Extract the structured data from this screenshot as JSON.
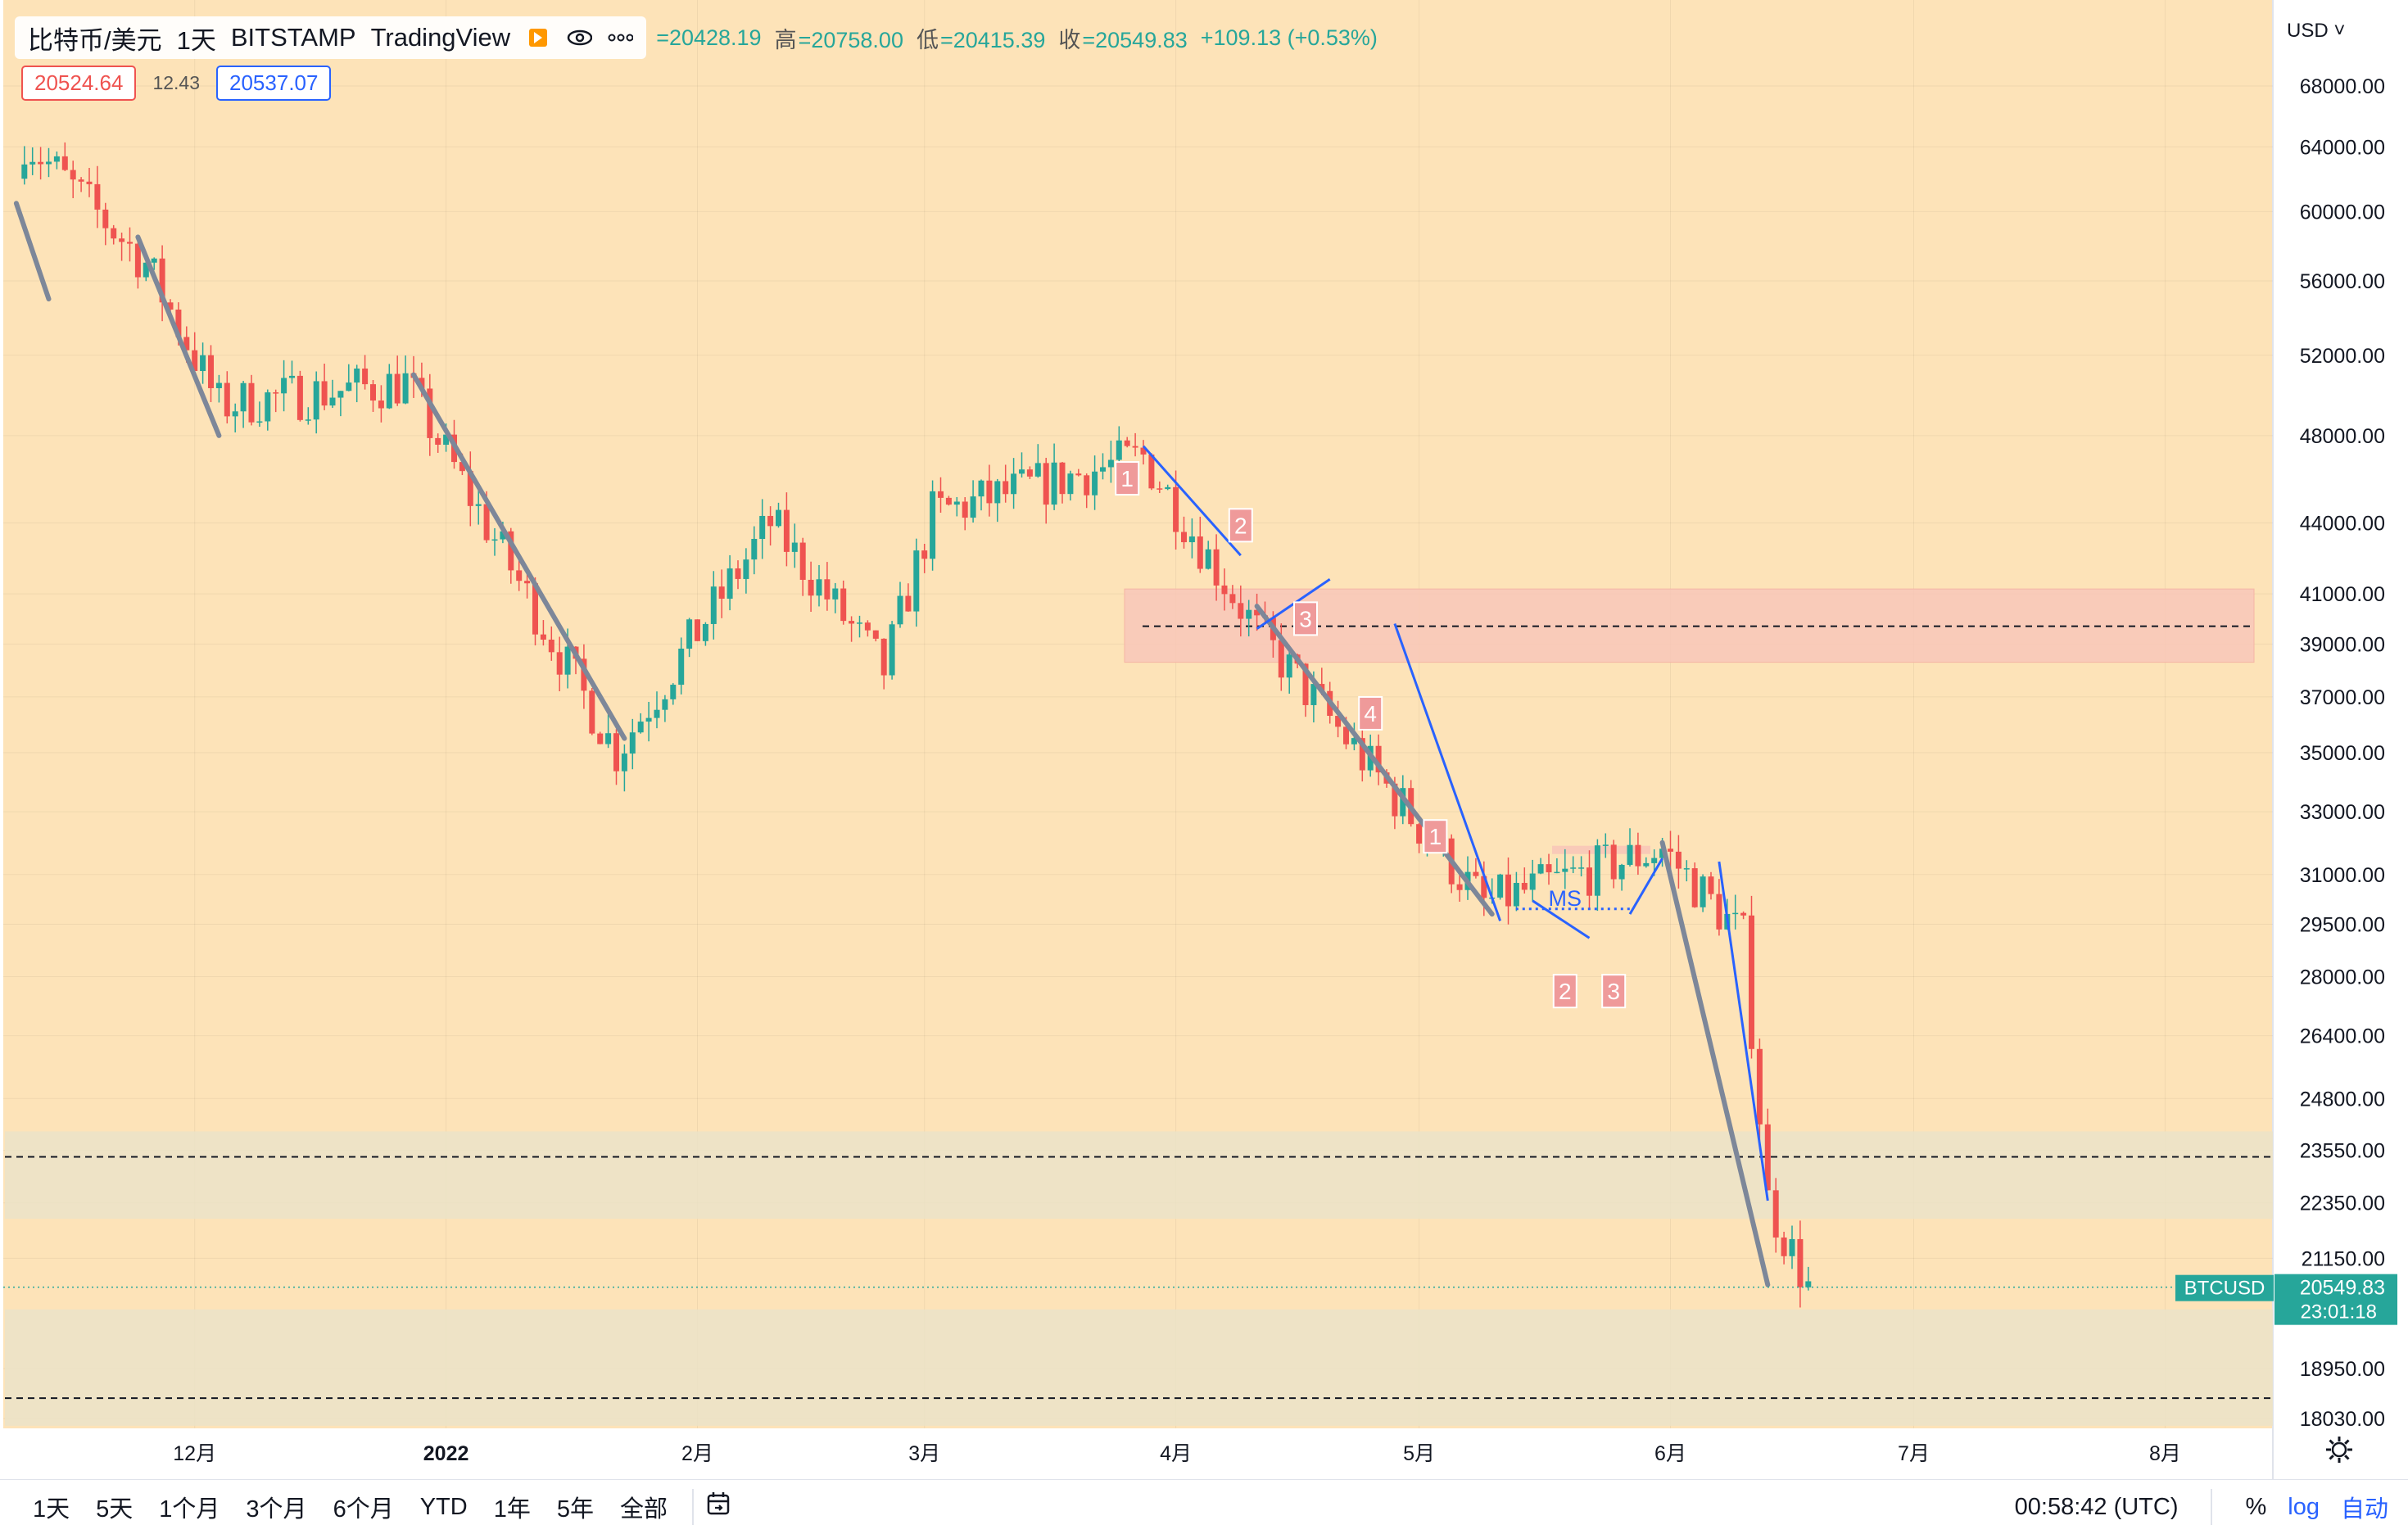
{
  "legend": {
    "symbol": "比特币/美元",
    "interval": "1天",
    "exchange": "BITSTAMP",
    "source": "TradingView",
    "ohlc": {
      "open_label": "",
      "open": "=20428.19",
      "high_label": "高",
      "high": "=20758.00",
      "low_label": "低",
      "low": "=20415.39",
      "close_label": "收",
      "close": "=20549.83",
      "change": "+109.13 (+0.53%)"
    },
    "bid": "20524.64",
    "spread": "12.43",
    "ask": "20537.07"
  },
  "currency": "USD",
  "bottom_bar": {
    "ranges": [
      "1天",
      "5天",
      "1个月",
      "3个月",
      "6个月",
      "YTD",
      "1年",
      "5年",
      "全部"
    ],
    "time": "00:58:42 (UTC)",
    "percent": "%",
    "log": "log",
    "auto": "自动"
  },
  "chart_data": {
    "type": "candlestick",
    "symbol": "BTCUSD",
    "interval": "1D",
    "scale": "log",
    "y_ticks": [
      68000,
      64000,
      60000,
      56000,
      52000,
      48000,
      44000,
      41000,
      39000,
      37000,
      35000,
      33000,
      31000,
      29500,
      28000,
      26400,
      24800,
      23550,
      22350,
      21150,
      18950,
      18030
    ],
    "x_ticks": [
      "12月",
      "2022",
      "2月",
      "3月",
      "4月",
      "5月",
      "6月",
      "7月",
      "8月"
    ],
    "last_price": {
      "label": "BTCUSD",
      "value": "20549.83",
      "countdown": "23:01:18"
    },
    "key_closes": [
      {
        "date": "2021-11-10",
        "close": 64500
      },
      {
        "date": "2021-11-25",
        "close": 57000
      },
      {
        "date": "2021-12-04",
        "close": 49500
      },
      {
        "date": "2021-12-27",
        "close": 50600
      },
      {
        "date": "2022-01-22",
        "close": 35000
      },
      {
        "date": "2022-02-10",
        "close": 44000
      },
      {
        "date": "2022-02-24",
        "close": 38000
      },
      {
        "date": "2022-03-02",
        "close": 44400
      },
      {
        "date": "2022-03-28",
        "close": 47000
      },
      {
        "date": "2022-04-11",
        "close": 39500
      },
      {
        "date": "2022-05-09",
        "close": 30100
      },
      {
        "date": "2022-05-31",
        "close": 31800
      },
      {
        "date": "2022-06-10",
        "close": 29100
      },
      {
        "date": "2022-06-13",
        "close": 22400
      },
      {
        "date": "2022-06-18",
        "close": 20549.83
      }
    ],
    "annotations": {
      "labels": [
        "1",
        "2",
        "3",
        "4",
        "1",
        "2",
        "3",
        "MS"
      ],
      "horizontal_levels": [
        39700,
        23400,
        18400
      ],
      "zones": [
        {
          "from": 38300,
          "to": 41200,
          "color": "#f8c7b8"
        },
        {
          "from": 22000,
          "to": 24000,
          "color": "#ebe3c8"
        },
        {
          "from": 17900,
          "to": 20100,
          "color": "#ebe3c8"
        }
      ]
    }
  },
  "colors": {
    "up": "#26a69a",
    "down": "#ef5350",
    "background": "#fde3b8",
    "trendline": "#7d8799",
    "wave": "#2962ff"
  }
}
